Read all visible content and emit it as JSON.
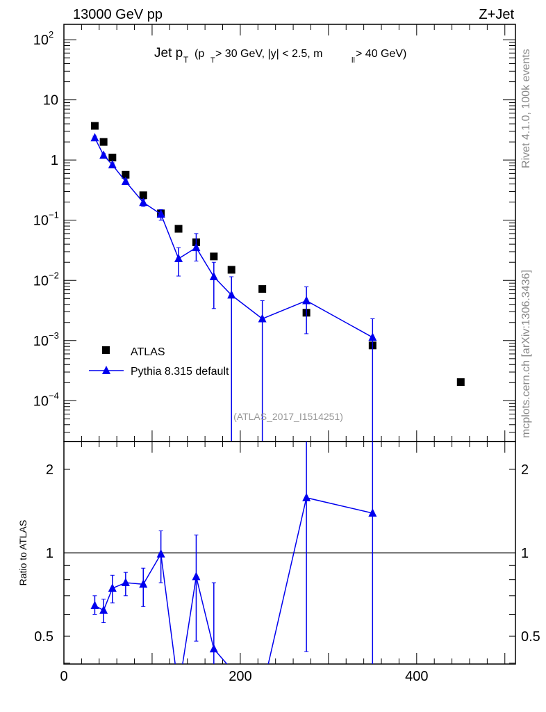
{
  "header": {
    "left": "13000 GeV pp",
    "right": "Z+Jet"
  },
  "side": {
    "top": "Rivet 4.1.0,  100k events",
    "bottom": "mcplots.cern.ch [arXiv:1306.3436]"
  },
  "colors": {
    "data": "#000000",
    "mc": "#0000ee"
  },
  "chart_data": [
    {
      "type": "scatter",
      "title_main": "Jet p",
      "title_sub": "T",
      "title_cut": "(p",
      "title_cut2": " > 30 GeV, |y| < 2.5, m",
      "title_cut3": " > 40 GeV)",
      "title_ll": "ll",
      "analysis": "(ATLAS_2017_I1514251)",
      "yscale": "log",
      "xlim": [
        0,
        512
      ],
      "ylim": [
        2.1e-05,
        180
      ],
      "yticks": [
        {
          "v": 100,
          "b": "10",
          "e": "2"
        },
        {
          "v": 10,
          "b": "10",
          "e": ""
        },
        {
          "v": 1,
          "b": "1",
          "e": ""
        },
        {
          "v": 0.1,
          "b": "10",
          "e": "−1"
        },
        {
          "v": 0.01,
          "b": "10",
          "e": "−2"
        },
        {
          "v": 0.001,
          "b": "10",
          "e": "−3"
        },
        {
          "v": 0.0001,
          "b": "10",
          "e": "−4"
        }
      ],
      "legend": {
        "position": "bottom-left",
        "entries": [
          "ATLAS",
          "Pythia 8.315 default"
        ]
      },
      "series": [
        {
          "name": "ATLAS",
          "x": [
            35,
            45,
            55,
            70,
            90,
            110,
            130,
            150,
            170,
            190,
            225,
            275,
            350,
            450
          ],
          "y": [
            3.7,
            2.0,
            1.1,
            0.57,
            0.26,
            0.13,
            0.072,
            0.043,
            0.025,
            0.015,
            0.0072,
            0.0029,
            0.00083,
            0.000204
          ]
        },
        {
          "name": "Pythia 8.315 default",
          "x": [
            35,
            45,
            55,
            70,
            90,
            110,
            130,
            150,
            170,
            190,
            225,
            275,
            350
          ],
          "y": [
            2.34,
            1.2,
            0.83,
            0.44,
            0.197,
            0.126,
            0.023,
            0.035,
            0.0115,
            0.0057,
            0.0023,
            0.0046,
            0.00113
          ],
          "ylo": [
            2.2,
            1.12,
            0.77,
            0.4,
            0.17,
            0.1,
            0.0118,
            0.021,
            0.0034,
            0,
            0,
            0.0013,
            0
          ],
          "yhi": [
            2.5,
            1.28,
            0.9,
            0.48,
            0.22,
            0.15,
            0.035,
            0.06,
            0.02,
            0.0115,
            0.0046,
            0.0078,
            0.0023
          ]
        }
      ]
    },
    {
      "type": "line",
      "ylabel": "Ratio to ATLAS",
      "yscale": "log",
      "xlim": [
        0,
        512
      ],
      "ylim": [
        0.397,
        2.52
      ],
      "yticks": [
        {
          "v": 0.5,
          "l": "0.5"
        },
        {
          "v": 1,
          "l": "1"
        },
        {
          "v": 2,
          "l": "2"
        }
      ],
      "xticks": [
        {
          "v": 0,
          "l": "0"
        },
        {
          "v": 200,
          "l": "200"
        },
        {
          "v": 400,
          "l": "400"
        }
      ],
      "series": [
        {
          "name": "Pythia 8.315 default / ATLAS",
          "x": [
            35,
            45,
            55,
            70,
            90,
            110,
            130,
            150,
            170,
            190,
            225,
            275,
            350
          ],
          "y": [
            0.645,
            0.62,
            0.745,
            0.78,
            0.77,
            0.99,
            0.32,
            0.82,
            0.45,
            0.38,
            0.32,
            1.58,
            1.39
          ],
          "ylo": [
            0.6,
            0.56,
            0.66,
            0.7,
            0.64,
            0.78,
            0.17,
            0.48,
            0.13,
            0,
            0,
            0.44,
            0
          ],
          "yhi": [
            0.7,
            0.68,
            0.83,
            0.85,
            0.88,
            1.2,
            0.48,
            1.16,
            0.78,
            0.77,
            0.64,
            2.7,
            2.8
          ]
        }
      ]
    }
  ]
}
